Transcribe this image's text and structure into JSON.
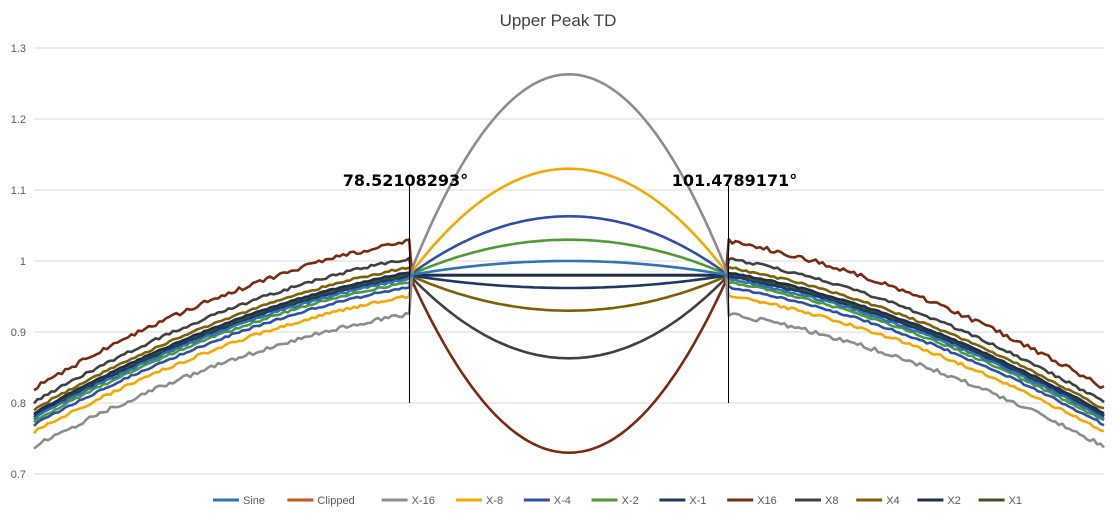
{
  "chart_data": {
    "type": "line",
    "title": "Upper Peak TD",
    "xlabel": "",
    "ylabel": "",
    "xlim": [
      51.5,
      128.5
    ],
    "ylim": [
      0.7,
      1.3
    ],
    "y_ticks": [
      "0.7",
      "0.8",
      "0.9",
      "1",
      "1.1",
      "1.2",
      "1.3"
    ],
    "grid": "horizontal",
    "legend_position": "bottom",
    "annotations": [
      {
        "text": "78.52108293°",
        "x": 78.52108293,
        "y_from": 0.8,
        "y_to": 0.98
      },
      {
        "text": "101.4789171°",
        "x": 101.4789171,
        "y_from": 0.8,
        "y_to": 0.98
      }
    ],
    "series": [
      {
        "name": "Sine",
        "color": "#2E75B6",
        "inner_peak": 1.0,
        "outer_scale": 0.9945,
        "noise": 0.0015
      },
      {
        "name": "Clipped",
        "color": "#C55A11",
        "inner_peak": null,
        "outer_scale": null,
        "noise": 0
      },
      {
        "name": "X-16",
        "color": "#8C8C8C",
        "inner_peak": 1.263,
        "outer_scale": 0.944,
        "noise": 0.003
      },
      {
        "name": "X-8",
        "color": "#F5A800",
        "inner_peak": 1.13,
        "outer_scale": 0.97,
        "noise": 0.002
      },
      {
        "name": "X-4",
        "color": "#2E4EAA",
        "inner_peak": 1.063,
        "outer_scale": 0.983,
        "noise": 0.0015
      },
      {
        "name": "X-2",
        "color": "#4E9A34",
        "inner_peak": 1.03,
        "outer_scale": 0.99,
        "noise": 0.0015
      },
      {
        "name": "X-1",
        "color": "#1F3864",
        "inner_peak": 0.962,
        "outer_scale": 0.998,
        "noise": 0.001
      },
      {
        "name": "X16",
        "color": "#7B2A12",
        "inner_peak": 0.73,
        "outer_scale": 1.049,
        "noise": 0.003
      },
      {
        "name": "X8",
        "color": "#404040",
        "inner_peak": 0.863,
        "outer_scale": 1.024,
        "noise": 0.002
      },
      {
        "name": "X4",
        "color": "#7F6000",
        "inner_peak": 0.93,
        "outer_scale": 1.011,
        "noise": 0.0015
      },
      {
        "name": "X2",
        "color": "#1F2D50",
        "inner_peak": 0.98,
        "outer_scale": 1.004,
        "noise": 0.001
      },
      {
        "name": "X1",
        "color": "#375623",
        "inner_peak": 0.98,
        "outer_scale": 1.001,
        "noise": 0.001
      }
    ]
  }
}
